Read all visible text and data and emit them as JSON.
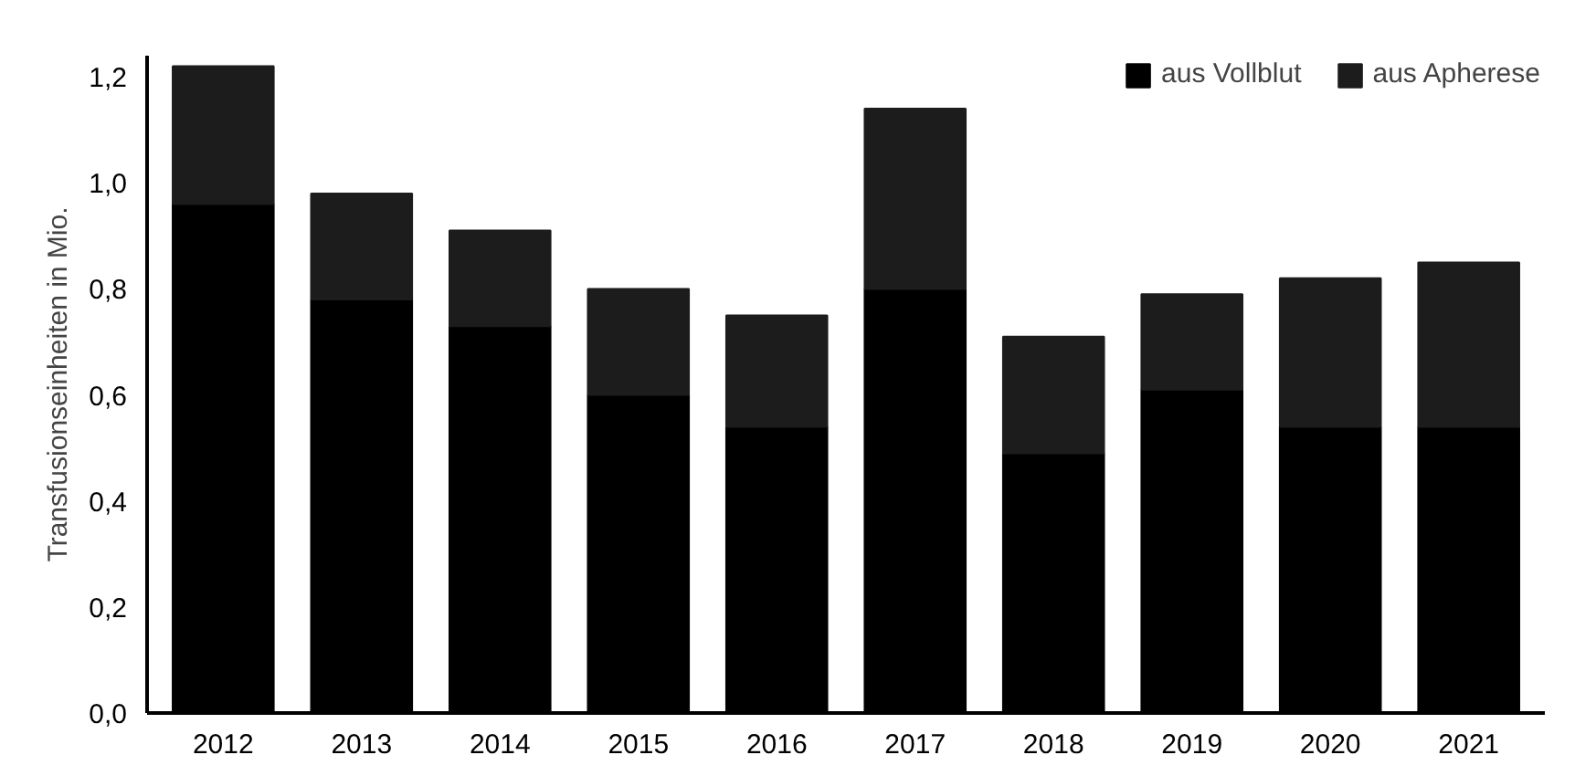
{
  "chart_data": {
    "type": "bar",
    "stacked": true,
    "ylabel": "Transfusionseinheiten in Mio.",
    "categories": [
      "2012",
      "2013",
      "2014",
      "2015",
      "2016",
      "2017",
      "2018",
      "2019",
      "2020",
      "2021"
    ],
    "series": [
      {
        "name": "aus Vollblut",
        "color": "#000000",
        "values": [
          0.96,
          0.78,
          0.73,
          0.6,
          0.54,
          0.8,
          0.49,
          0.61,
          0.54,
          0.54
        ]
      },
      {
        "name": "aus Apherese",
        "color": "#1c1c1c",
        "values": [
          0.26,
          0.2,
          0.18,
          0.2,
          0.21,
          0.34,
          0.22,
          0.18,
          0.28,
          0.31
        ]
      }
    ],
    "ylim": [
      0,
      1.24
    ],
    "yticks": [
      {
        "value": 0,
        "label": "0,0"
      },
      {
        "value": 0.2,
        "label": "0,2"
      },
      {
        "value": 0.4,
        "label": "0,4"
      },
      {
        "value": 0.6,
        "label": "0,6"
      },
      {
        "value": 0.8,
        "label": "0,8"
      },
      {
        "value": 1.0,
        "label": "1,0"
      },
      {
        "value": 1.2,
        "label": "1,2"
      }
    ],
    "grid": false,
    "legend": "top right"
  }
}
